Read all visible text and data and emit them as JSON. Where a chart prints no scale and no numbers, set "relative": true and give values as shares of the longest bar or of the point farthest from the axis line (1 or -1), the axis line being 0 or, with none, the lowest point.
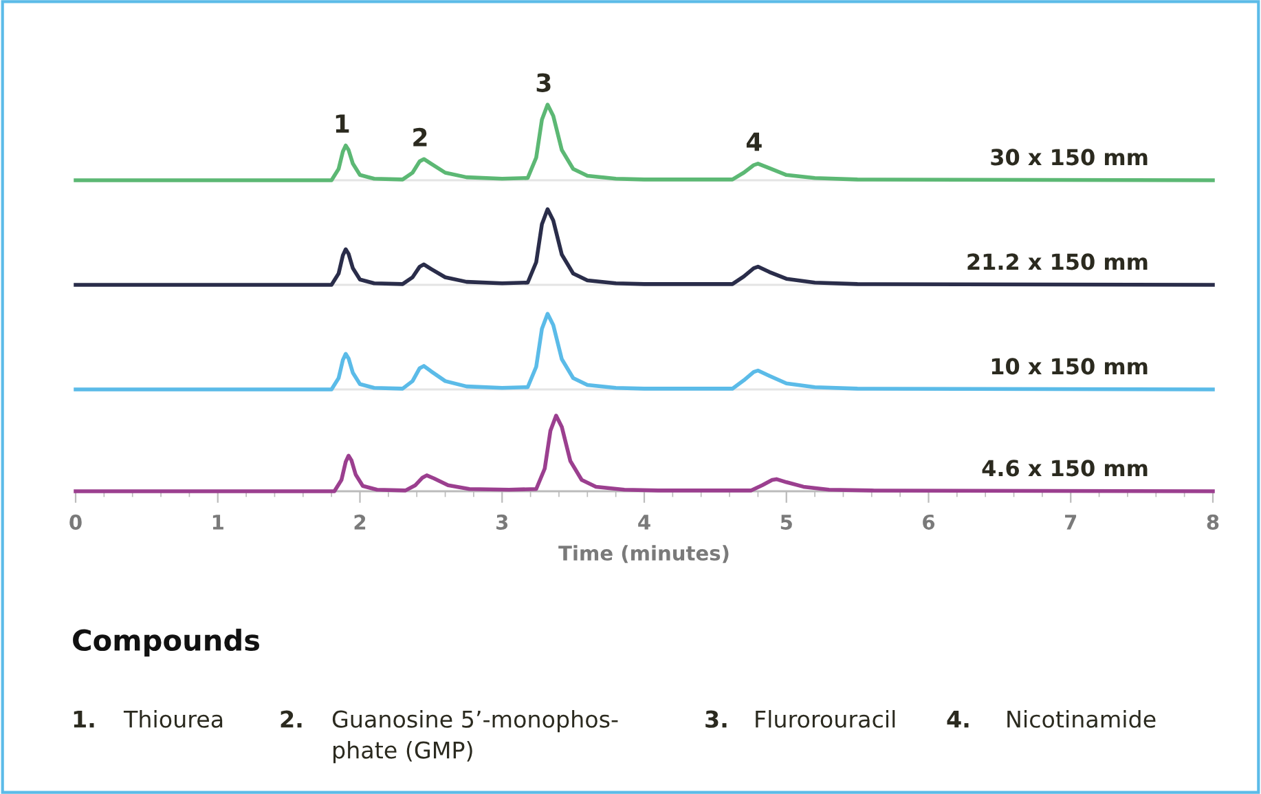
{
  "chart_data": [
    {
      "type": "line",
      "relative": true,
      "tick_labels": false,
      "marker": "none",
      "line_style": "solid",
      "xlim": [
        0,
        8
      ],
      "x": [
        0,
        1.8,
        1.85,
        1.88,
        1.9,
        1.92,
        1.95,
        2.0,
        2.1,
        2.3,
        2.37,
        2.42,
        2.45,
        2.5,
        2.6,
        2.75,
        3.0,
        3.18,
        3.24,
        3.28,
        3.32,
        3.36,
        3.42,
        3.5,
        3.6,
        3.8,
        4.0,
        4.62,
        4.7,
        4.77,
        4.8,
        4.88,
        5.0,
        5.2,
        5.5,
        8
      ],
      "xticks": [
        0,
        1,
        2,
        3,
        4,
        5,
        6,
        7,
        8
      ],
      "series": [
        {
          "name": "30 x 150 mm",
          "color": "#5cb874",
          "values": [
            0,
            0,
            0.15,
            0.38,
            0.46,
            0.4,
            0.22,
            0.07,
            0.02,
            0.01,
            0.1,
            0.25,
            0.28,
            0.22,
            0.1,
            0.04,
            0.02,
            0.03,
            0.3,
            0.8,
            1,
            0.85,
            0.4,
            0.15,
            0.06,
            0.02,
            0.01,
            0.01,
            0.1,
            0.2,
            0.22,
            0.16,
            0.07,
            0.03,
            0.01,
            0
          ]
        }
      ],
      "annotations": [
        {
          "text": "1",
          "x": 1.9,
          "y": 0.46
        },
        {
          "text": "2",
          "x": 2.45,
          "y": 0.28
        },
        {
          "text": "3",
          "x": 3.32,
          "y": 1
        },
        {
          "text": "4",
          "x": 4.8,
          "y": 0.22
        }
      ]
    },
    {
      "type": "line",
      "relative": true,
      "tick_labels": false,
      "marker": "none",
      "line_style": "solid",
      "xlim": [
        0,
        8
      ],
      "x": [
        0,
        1.8,
        1.85,
        1.88,
        1.9,
        1.92,
        1.95,
        2.0,
        2.1,
        2.3,
        2.37,
        2.42,
        2.45,
        2.5,
        2.6,
        2.75,
        3.0,
        3.18,
        3.24,
        3.28,
        3.32,
        3.36,
        3.42,
        3.5,
        3.6,
        3.8,
        4.0,
        4.62,
        4.7,
        4.77,
        4.8,
        4.88,
        5.0,
        5.2,
        5.5,
        8
      ],
      "xticks": [
        0,
        1,
        2,
        3,
        4,
        5,
        6,
        7,
        8
      ],
      "series": [
        {
          "name": "21.2 x 150 mm",
          "color": "#2a2d4a",
          "values": [
            0,
            0,
            0.15,
            0.39,
            0.47,
            0.41,
            0.22,
            0.07,
            0.02,
            0.01,
            0.1,
            0.24,
            0.27,
            0.21,
            0.1,
            0.04,
            0.02,
            0.03,
            0.3,
            0.8,
            1,
            0.85,
            0.4,
            0.15,
            0.06,
            0.02,
            0.01,
            0.01,
            0.11,
            0.22,
            0.24,
            0.17,
            0.08,
            0.03,
            0.01,
            0
          ]
        }
      ]
    },
    {
      "type": "line",
      "relative": true,
      "tick_labels": false,
      "marker": "none",
      "line_style": "solid",
      "xlim": [
        0,
        8
      ],
      "x": [
        0,
        1.8,
        1.85,
        1.88,
        1.9,
        1.92,
        1.95,
        2.0,
        2.1,
        2.3,
        2.37,
        2.42,
        2.45,
        2.5,
        2.6,
        2.75,
        3.0,
        3.18,
        3.24,
        3.28,
        3.32,
        3.36,
        3.42,
        3.5,
        3.6,
        3.8,
        4.0,
        4.62,
        4.7,
        4.77,
        4.8,
        4.88,
        5.0,
        5.2,
        5.5,
        8
      ],
      "xticks": [
        0,
        1,
        2,
        3,
        4,
        5,
        6,
        7,
        8
      ],
      "series": [
        {
          "name": "10 x 150 mm",
          "color": "#5bbbe8",
          "values": [
            0,
            0,
            0.15,
            0.39,
            0.47,
            0.41,
            0.22,
            0.07,
            0.02,
            0.01,
            0.11,
            0.28,
            0.31,
            0.24,
            0.11,
            0.04,
            0.02,
            0.03,
            0.3,
            0.8,
            1,
            0.85,
            0.4,
            0.15,
            0.06,
            0.02,
            0.01,
            0.01,
            0.12,
            0.23,
            0.25,
            0.18,
            0.08,
            0.03,
            0.01,
            0
          ]
        }
      ]
    },
    {
      "type": "line",
      "relative": true,
      "tick_labels": "x",
      "marker": "none",
      "line_style": "solid",
      "xlabel": "Time (minutes)",
      "xlim": [
        0,
        8
      ],
      "xticks": [
        0,
        1,
        2,
        3,
        4,
        5,
        6,
        7,
        8
      ],
      "x": [
        0,
        1.82,
        1.87,
        1.9,
        1.92,
        1.94,
        1.97,
        2.02,
        2.12,
        2.32,
        2.39,
        2.44,
        2.47,
        2.52,
        2.62,
        2.77,
        3.05,
        3.24,
        3.3,
        3.34,
        3.38,
        3.42,
        3.48,
        3.56,
        3.66,
        3.86,
        4.1,
        4.75,
        4.83,
        4.9,
        4.93,
        5.0,
        5.12,
        5.3,
        5.6,
        8
      ],
      "series": [
        {
          "name": "4.6 x 150 mm",
          "color": "#9b3f8f",
          "values": [
            0,
            0,
            0.15,
            0.39,
            0.47,
            0.41,
            0.22,
            0.07,
            0.02,
            0.01,
            0.08,
            0.18,
            0.21,
            0.17,
            0.08,
            0.03,
            0.02,
            0.03,
            0.3,
            0.8,
            1,
            0.85,
            0.4,
            0.15,
            0.06,
            0.02,
            0.01,
            0.01,
            0.08,
            0.15,
            0.16,
            0.12,
            0.06,
            0.02,
            0.01,
            0
          ]
        }
      ]
    },
    {
      "type": "other",
      "title": "Compounds",
      "annotations": [
        "1. Thiourea",
        "2. Guanosine 5’-monophos-\nphate (GMP)",
        "3. Flurorouracil",
        "4. Nicotinamide"
      ]
    }
  ]
}
